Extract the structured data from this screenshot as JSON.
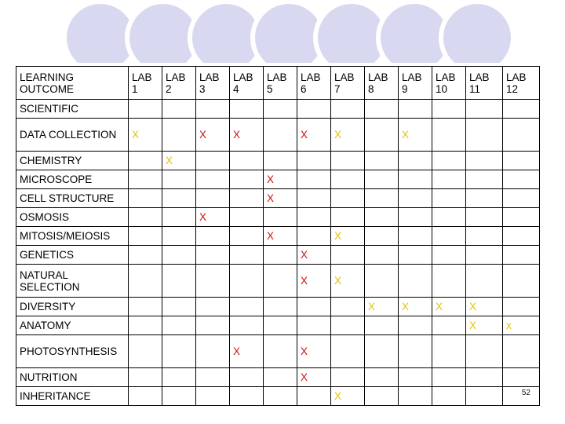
{
  "colors": {
    "red": "#cc1111",
    "yellow": "#e6c100",
    "circle_fill": "#d8d8f0",
    "circle_stroke": "#ffffff"
  },
  "header": {
    "outcome_label": "LEARNING OUTCOME",
    "labs": [
      "LAB 1",
      "LAB 2",
      "LAB 3",
      "LAB 4",
      "LAB 5",
      "LAB 6",
      "LAB 7",
      "LAB 8",
      "LAB 9",
      "LAB 10",
      "LAB 11",
      "LAB 12"
    ]
  },
  "rows": [
    {
      "outcome": "SCIENTIFIC",
      "marks": {}
    },
    {
      "outcome": "DATA COLLECTION",
      "marks": {
        "0": {
          "text": "X",
          "color": "yellow"
        },
        "2": {
          "text": "X",
          "color": "red"
        },
        "3": {
          "text": "X",
          "color": "red"
        },
        "5": {
          "text": "X",
          "color": "red"
        },
        "6": {
          "text": "X",
          "color": "yellow"
        },
        "8": {
          "text": "X",
          "color": "yellow"
        }
      }
    },
    {
      "outcome": "CHEMISTRY",
      "marks": {
        "1": {
          "text": "X",
          "color": "yellow"
        }
      }
    },
    {
      "outcome": "MICROSCOPE",
      "marks": {
        "4": {
          "text": "X",
          "color": "red"
        }
      }
    },
    {
      "outcome": "CELL STRUCTURE",
      "marks": {
        "4": {
          "text": "X",
          "color": "red"
        }
      }
    },
    {
      "outcome": "OSMOSIS",
      "marks": {
        "2": {
          "text": "X",
          "color": "red"
        }
      }
    },
    {
      "outcome": "MITOSIS/MEIOSIS",
      "marks": {
        "4": {
          "text": "X",
          "color": "red"
        },
        "6": {
          "text": "X",
          "color": "yellow"
        }
      }
    },
    {
      "outcome": "GENETICS",
      "marks": {
        "5": {
          "text": "X",
          "color": "red"
        }
      }
    },
    {
      "outcome": "NATURAL SELECTION",
      "marks": {
        "5": {
          "text": "X",
          "color": "red"
        },
        "6": {
          "text": "X",
          "color": "yellow"
        }
      }
    },
    {
      "outcome": "DIVERSITY",
      "marks": {
        "7": {
          "text": "X",
          "color": "yellow"
        },
        "8": {
          "text": "X",
          "color": "yellow"
        },
        "9": {
          "text": "X",
          "color": "yellow"
        },
        "10": {
          "text": "X",
          "color": "yellow"
        }
      }
    },
    {
      "outcome": "ANATOMY",
      "marks": {
        "10": {
          "text": "X",
          "color": "yellow"
        },
        "11": {
          "text": "x",
          "color": "yellow"
        }
      }
    },
    {
      "outcome": "PHOTOSYNTHESIS",
      "marks": {
        "3": {
          "text": "X",
          "color": "red"
        },
        "5": {
          "text": "X",
          "color": "red"
        }
      }
    },
    {
      "outcome": "NUTRITION",
      "marks": {
        "5": {
          "text": "X",
          "color": "red"
        }
      }
    },
    {
      "outcome": "INHERITANCE",
      "marks": {
        "6": {
          "text": "X",
          "color": "yellow"
        }
      }
    }
  ],
  "page_number": "52"
}
